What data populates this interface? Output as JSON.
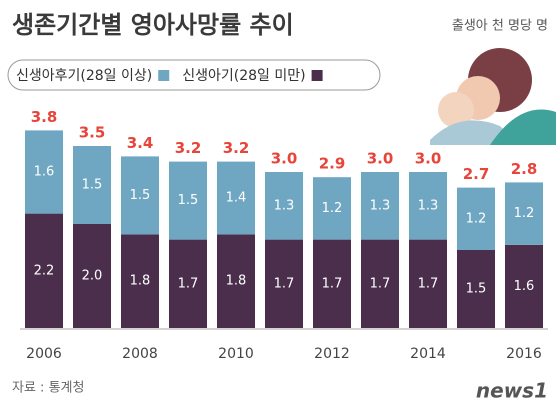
{
  "chart_data": {
    "type": "stacked-bar",
    "title": "생존기간별 영아사망률 추이",
    "unit_note": "출생아 천 명당 명",
    "source": "자료 : 통계청",
    "logo": "news1",
    "categories": [
      "2006",
      null,
      "2008",
      null,
      "2010",
      null,
      "2012",
      null,
      "2014",
      null,
      "2016"
    ],
    "series": [
      {
        "name": "신생아기(28일 미만)",
        "color": "#4b2e4c",
        "values": [
          2.2,
          2.0,
          1.8,
          1.7,
          1.8,
          1.7,
          1.7,
          1.7,
          1.7,
          1.5,
          1.6
        ],
        "value_labels": [
          "2.2",
          "2.0",
          "1.8",
          "1.7",
          "1.8",
          "1.7",
          "1.7",
          "1.7",
          "1.7",
          "1.5",
          "1.6"
        ]
      },
      {
        "name": "신생아후기(28일 이상)",
        "color": "#6fa7c3",
        "values": [
          1.6,
          1.5,
          1.5,
          1.5,
          1.4,
          1.3,
          1.2,
          1.3,
          1.3,
          1.2,
          1.2
        ],
        "value_labels": [
          "1.6",
          "1.5",
          "1.5",
          "1.5",
          "1.4",
          "1.3",
          "1.2",
          "1.3",
          "1.3",
          "1.2",
          "1.2"
        ]
      }
    ],
    "totals": [
      3.8,
      3.5,
      3.4,
      3.2,
      3.2,
      3.0,
      2.9,
      3.0,
      3.0,
      2.7,
      2.8
    ],
    "total_labels": [
      "3.8",
      "3.5",
      "3.4",
      "3.2",
      "3.2",
      "3.0",
      "2.9",
      "3.0",
      "3.0",
      "2.7",
      "2.8"
    ],
    "total_color": "#e8443a"
  }
}
